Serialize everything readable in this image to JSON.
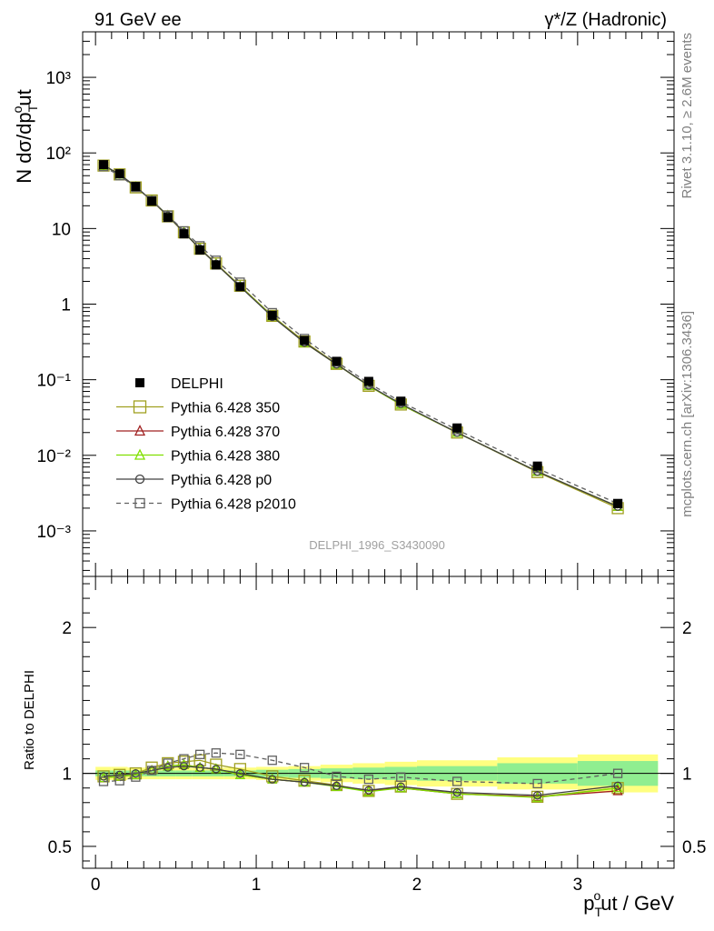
{
  "header": {
    "left": "91 GeV ee",
    "right": "γ*/Z (Hadronic)"
  },
  "side": {
    "rivet": "Rivet 3.1.10, ≥ 2.6M events",
    "mcplots": "mcplots.cern.ch [arXiv:1306.3436]"
  },
  "watermark": "DELPHI_1996_S3430090",
  "axes": {
    "y_main_label": "N dσ/dp",
    "y_main_sub": "T",
    "y_main_sup": "o",
    "y_main_suffix": "ut",
    "y_ratio_label": "Ratio to DELPHI",
    "x_label_p": "p",
    "x_label_sub": "T",
    "x_label_sup": "o",
    "x_label_suffix": "ut / GeV"
  },
  "chart_data": [
    {
      "type": "line",
      "panel": "main",
      "yscale": "log",
      "ylim": [
        0.00025,
        4000
      ],
      "xlim": [
        -0.08,
        3.6
      ],
      "x": [
        0.05,
        0.15,
        0.25,
        0.35,
        0.45,
        0.55,
        0.65,
        0.75,
        0.9,
        1.1,
        1.3,
        1.5,
        1.7,
        1.9,
        2.25,
        2.75,
        3.25
      ],
      "xticks": [
        "0",
        "1",
        "2",
        "3"
      ],
      "yticks": [
        "10⁻³",
        "10⁻²",
        "10⁻¹",
        "1",
        "10",
        "10²",
        "10³"
      ],
      "legend_position": "center-left",
      "series": [
        {
          "name": "DELPHI",
          "color": "#000000",
          "marker": "filled-square",
          "values": [
            70,
            53,
            36,
            23,
            14,
            8.5,
            5.2,
            3.3,
            1.7,
            0.71,
            0.33,
            0.175,
            0.095,
            0.052,
            0.023,
            0.0072,
            0.0023
          ]
        },
        {
          "name": "Pythia 6.428 350",
          "color": "#a0a020",
          "marker": "open-square",
          "values": [
            68,
            52,
            35,
            23.5,
            14.5,
            8.9,
            5.4,
            3.45,
            1.75,
            0.7,
            0.32,
            0.162,
            0.083,
            0.047,
            0.02,
            0.006,
            0.002
          ]
        },
        {
          "name": "Pythia 6.428 370",
          "color": "#a02020",
          "marker": "open-triangle",
          "values": [
            68,
            52,
            35.5,
            23.5,
            14.8,
            8.9,
            5.4,
            3.4,
            1.72,
            0.69,
            0.31,
            0.16,
            0.083,
            0.047,
            0.02,
            0.0061,
            0.0021
          ]
        },
        {
          "name": "Pythia 6.428 380",
          "color": "#80e000",
          "marker": "open-triangle",
          "values": [
            68,
            52,
            35.5,
            23.5,
            14.8,
            8.9,
            5.4,
            3.4,
            1.72,
            0.69,
            0.31,
            0.16,
            0.083,
            0.047,
            0.02,
            0.0061,
            0.0021
          ]
        },
        {
          "name": "Pythia 6.428 p0",
          "color": "#404040",
          "marker": "open-circle",
          "values": [
            69,
            52,
            36,
            23.4,
            14.8,
            8.9,
            5.4,
            3.4,
            1.7,
            0.68,
            0.31,
            0.16,
            0.084,
            0.048,
            0.02,
            0.0061,
            0.0021
          ]
        },
        {
          "name": "Pythia 6.428 p2010",
          "color": "#606060",
          "marker": "open-square",
          "dashed": true,
          "values": [
            66,
            50,
            35,
            23.5,
            15,
            9.3,
            5.9,
            3.8,
            1.95,
            0.77,
            0.35,
            0.172,
            0.09,
            0.051,
            0.0218,
            0.0067,
            0.0023
          ]
        }
      ]
    },
    {
      "type": "line",
      "panel": "ratio",
      "ylim": [
        0.35,
        2.35
      ],
      "xlim": [
        -0.08,
        3.6
      ],
      "yticks": [
        "0.5",
        "1",
        "2"
      ],
      "reference": 1,
      "bands": {
        "x_edges": [
          0.0,
          0.1,
          0.2,
          0.3,
          0.4,
          0.5,
          0.6,
          0.7,
          0.8,
          1.0,
          1.2,
          1.4,
          1.6,
          1.8,
          2.0,
          2.5,
          3.0,
          3.5
        ],
        "stat": [
          0.02,
          0.02,
          0.02,
          0.02,
          0.02,
          0.02,
          0.02,
          0.02,
          0.02,
          0.025,
          0.03,
          0.035,
          0.04,
          0.045,
          0.05,
          0.07,
          0.085
        ],
        "total": [
          0.045,
          0.045,
          0.04,
          0.04,
          0.04,
          0.04,
          0.04,
          0.04,
          0.04,
          0.045,
          0.05,
          0.06,
          0.07,
          0.08,
          0.09,
          0.11,
          0.13
        ]
      },
      "series": [
        {
          "name": "Pythia 6.428 350",
          "color": "#a0a020",
          "marker": "open-square",
          "values": [
            0.98,
            0.99,
            1.0,
            1.04,
            1.07,
            1.08,
            1.09,
            1.06,
            1.03,
            0.98,
            0.95,
            0.92,
            0.88,
            0.91,
            0.86,
            0.84,
            0.9
          ]
        },
        {
          "name": "Pythia 6.428 370",
          "color": "#a02020",
          "marker": "open-triangle",
          "values": [
            0.97,
            0.98,
            0.99,
            1.02,
            1.05,
            1.06,
            1.04,
            1.03,
            0.99,
            0.96,
            0.94,
            0.915,
            0.88,
            0.9,
            0.86,
            0.84,
            0.88
          ]
        },
        {
          "name": "Pythia 6.428 380",
          "color": "#80e000",
          "marker": "open-triangle",
          "values": [
            0.97,
            0.98,
            0.99,
            1.02,
            1.05,
            1.06,
            1.04,
            1.03,
            0.99,
            0.96,
            0.94,
            0.91,
            0.875,
            0.9,
            0.86,
            0.835,
            0.9
          ]
        },
        {
          "name": "Pythia 6.428 p0",
          "color": "#404040",
          "marker": "open-circle",
          "values": [
            0.98,
            0.99,
            1.0,
            1.02,
            1.04,
            1.05,
            1.04,
            1.03,
            1.0,
            0.96,
            0.94,
            0.915,
            0.885,
            0.91,
            0.87,
            0.85,
            0.915
          ]
        },
        {
          "name": "Pythia 6.428 p2010",
          "color": "#606060",
          "marker": "open-square",
          "dashed": true,
          "values": [
            0.945,
            0.95,
            0.975,
            1.02,
            1.07,
            1.1,
            1.13,
            1.14,
            1.13,
            1.09,
            1.04,
            0.98,
            0.96,
            0.975,
            0.945,
            0.93,
            1.0
          ]
        }
      ]
    }
  ]
}
